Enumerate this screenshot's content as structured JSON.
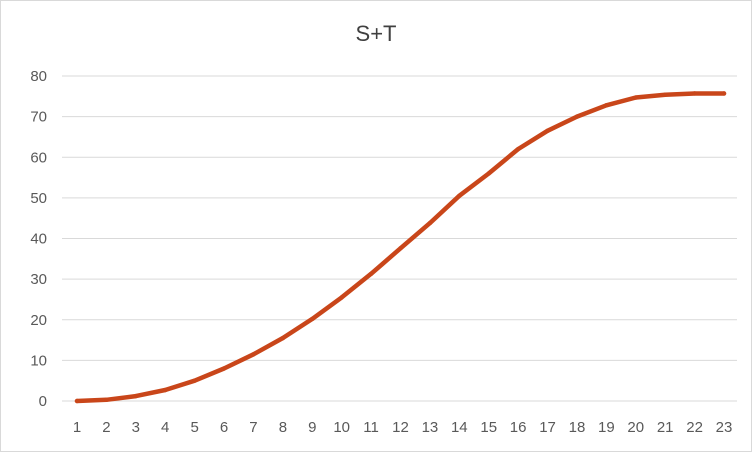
{
  "chart_data": {
    "type": "line",
    "title": "S+T",
    "xlabel": "",
    "ylabel": "",
    "x": [
      "1",
      "2",
      "3",
      "4",
      "5",
      "6",
      "7",
      "8",
      "9",
      "10",
      "11",
      "12",
      "13",
      "14",
      "15",
      "16",
      "17",
      "18",
      "19",
      "20",
      "21",
      "22",
      "23"
    ],
    "series": [
      {
        "values": [
          0,
          0.3,
          1.2,
          2.7,
          5.0,
          8.0,
          11.5,
          15.5,
          20.2,
          25.5,
          31.3,
          37.6,
          43.8,
          50.5,
          56.0,
          62.0,
          66.5,
          70.0,
          72.8,
          74.7,
          75.4,
          75.7,
          75.7
        ],
        "color": "#c9461a"
      }
    ],
    "ylim": [
      0,
      80
    ],
    "yticks": [
      "0",
      "10",
      "20",
      "30",
      "40",
      "50",
      "60",
      "70",
      "80"
    ],
    "grid": true,
    "legend": "none"
  }
}
